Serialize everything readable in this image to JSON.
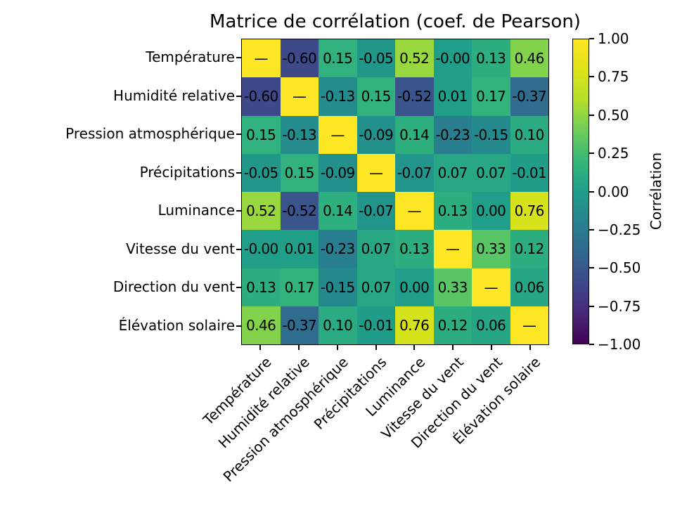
{
  "figure": {
    "background": "#ffffff",
    "text_color": "#000000",
    "axis_color": "#000000"
  },
  "chart_data": {
    "type": "heatmap",
    "title": "Matrice de corrélation (coef. de Pearson)",
    "categories": [
      "Température",
      "Humidité relative",
      "Pression atmosphérique",
      "Précipitations",
      "Luminance",
      "Vitesse du vent",
      "Direction du vent",
      "Élévation solaire"
    ],
    "diagonal_symbol": "—",
    "matrix_display": [
      [
        "—",
        "-0.60",
        "0.15",
        "-0.05",
        "0.52",
        "-0.00",
        "0.13",
        "0.46"
      ],
      [
        "-0.60",
        "—",
        "-0.13",
        "0.15",
        "-0.52",
        "0.01",
        "0.17",
        "-0.37"
      ],
      [
        "0.15",
        "-0.13",
        "—",
        "-0.09",
        "0.14",
        "-0.23",
        "-0.15",
        "0.10"
      ],
      [
        "-0.05",
        "0.15",
        "-0.09",
        "—",
        "-0.07",
        "0.07",
        "0.07",
        "-0.01"
      ],
      [
        "0.52",
        "-0.52",
        "0.14",
        "-0.07",
        "—",
        "0.13",
        "0.00",
        "0.76"
      ],
      [
        "-0.00",
        "0.01",
        "-0.23",
        "0.07",
        "0.13",
        "—",
        "0.33",
        "0.12"
      ],
      [
        "0.13",
        "0.17",
        "-0.15",
        "0.07",
        "0.00",
        "0.33",
        "—",
        "0.06"
      ],
      [
        "0.46",
        "-0.37",
        "0.10",
        "-0.01",
        "0.76",
        "0.12",
        "0.06",
        "—"
      ]
    ],
    "matrix_values": [
      [
        1.0,
        -0.6,
        0.15,
        -0.05,
        0.52,
        -0.0,
        0.13,
        0.46
      ],
      [
        -0.6,
        1.0,
        -0.13,
        0.15,
        -0.52,
        0.01,
        0.17,
        -0.37
      ],
      [
        0.15,
        -0.13,
        1.0,
        -0.09,
        0.14,
        -0.23,
        -0.15,
        0.1
      ],
      [
        -0.05,
        0.15,
        -0.09,
        1.0,
        -0.07,
        0.07,
        0.07,
        -0.01
      ],
      [
        0.52,
        -0.52,
        0.14,
        -0.07,
        1.0,
        0.13,
        0.0,
        0.76
      ],
      [
        -0.0,
        0.01,
        -0.23,
        0.07,
        0.13,
        1.0,
        0.33,
        0.12
      ],
      [
        0.13,
        0.17,
        -0.15,
        0.07,
        0.0,
        0.33,
        1.0,
        0.06
      ],
      [
        0.46,
        -0.37,
        0.1,
        -0.01,
        0.76,
        0.12,
        0.06,
        1.0
      ]
    ],
    "colormap": "viridis",
    "vmin": -1,
    "vmax": 1,
    "viridis_stops": [
      "#440154",
      "#482878",
      "#3e4989",
      "#31688e",
      "#26828e",
      "#1f9e89",
      "#35b779",
      "#6dcd59",
      "#b4de2c",
      "#dfe318",
      "#fde725"
    ],
    "colorbar": {
      "label": "Corrélation",
      "tick_labels": [
        "1.00",
        "0.75",
        "0.50",
        "0.25",
        "0.00",
        "−0.25",
        "−0.50",
        "−0.75",
        "−1.00"
      ],
      "tick_values": [
        1.0,
        0.75,
        0.5,
        0.25,
        0.0,
        -0.25,
        -0.5,
        -0.75,
        -1.0
      ]
    },
    "grid": false,
    "annotation_color": "#000000"
  }
}
